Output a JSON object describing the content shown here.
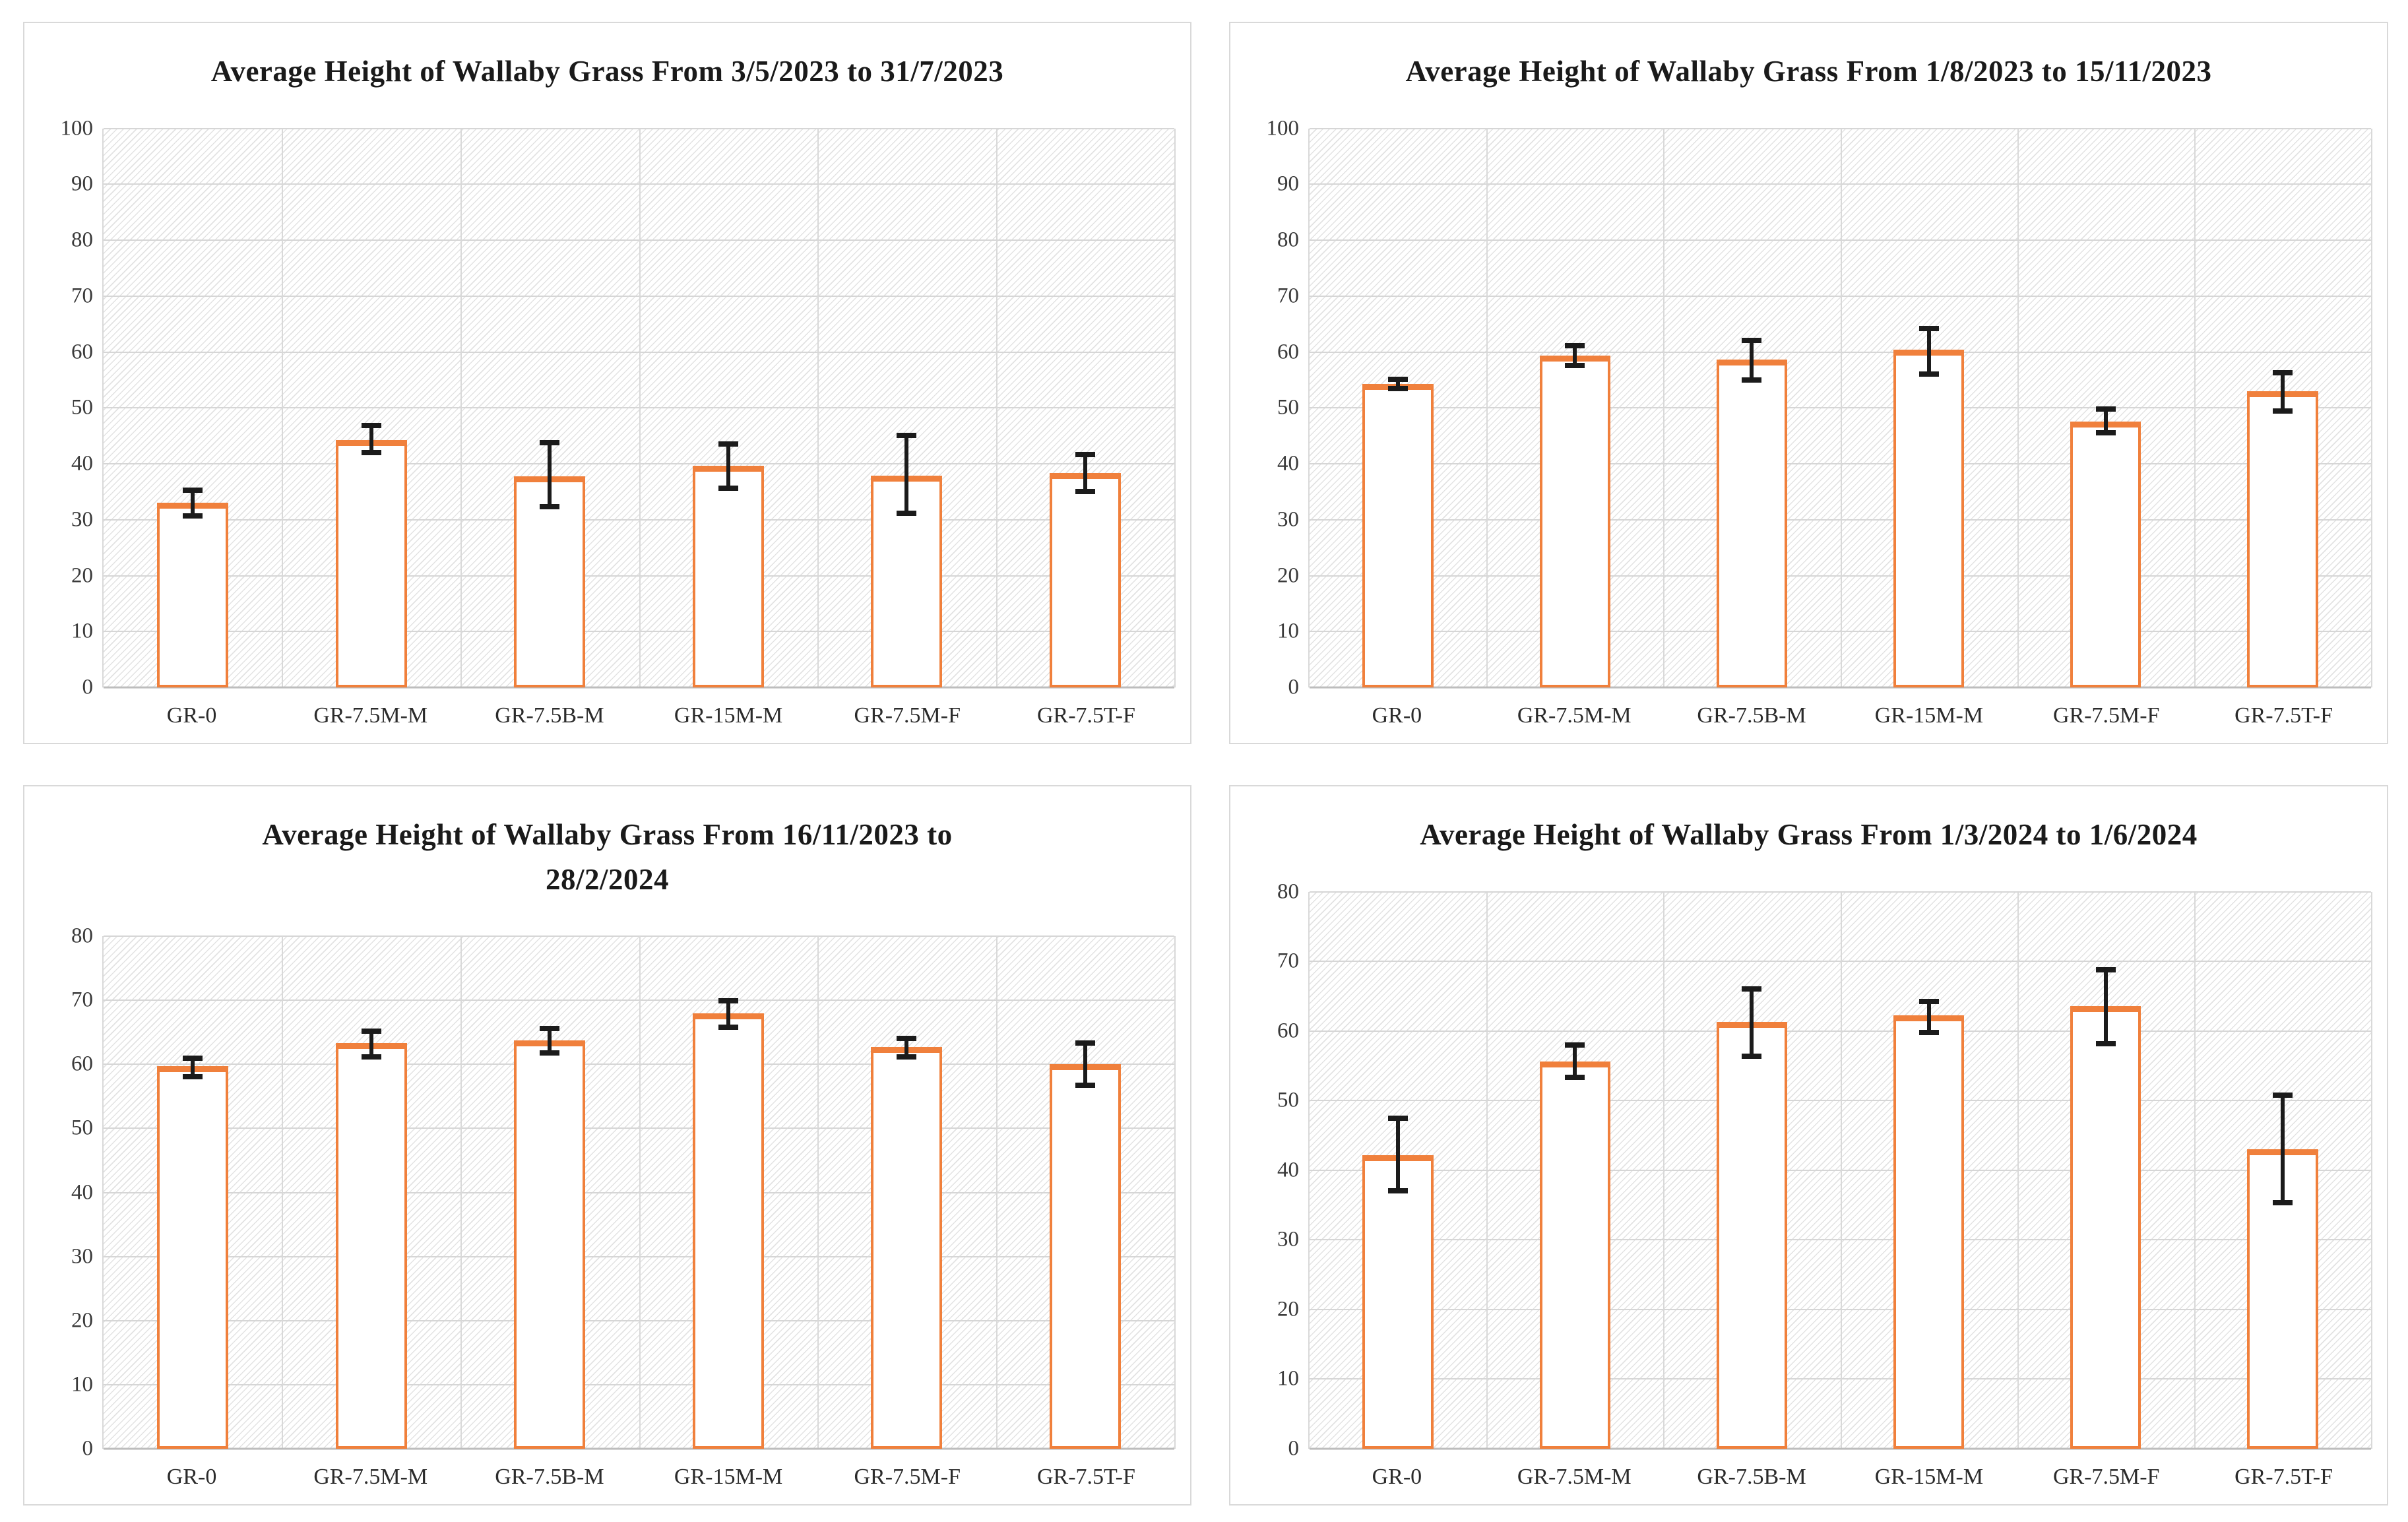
{
  "style": {
    "bar_fill": "#FFFFFF",
    "bar_border": "#F0803C",
    "error_color": "#1B1B1B",
    "gridline_color": "#D6D6D6",
    "axis_color": "#BDBDBD",
    "panel_border": "#D9D9D9",
    "hatch_color": "#E6E6E6",
    "title_color": "#1A1A1A"
  },
  "chart_data": [
    {
      "type": "bar",
      "title": "Average Height of Wallaby Grass From 3/5/2023 to 31/7/2023",
      "title_lines": [
        "Average Height of Wallaby Grass From 3/5/2023 to 31/7/2023"
      ],
      "categories": [
        "GR-0",
        "GR-7.5M-M",
        "GR-7.5B-M",
        "GR-15M-M",
        "GR-7.5M-F",
        "GR-7.5T-F"
      ],
      "values": [
        33.0,
        44.3,
        37.8,
        39.7,
        37.9,
        38.4
      ],
      "error_low": [
        30.7,
        42.0,
        32.3,
        35.6,
        31.2,
        35.1
      ],
      "error_high": [
        35.3,
        46.8,
        43.8,
        43.6,
        45.1,
        41.7
      ],
      "ylim": [
        0,
        100
      ],
      "ytick_step": 10,
      "yticks": [
        0,
        10,
        20,
        30,
        40,
        50,
        60,
        70,
        80,
        90,
        100
      ],
      "xlabel": "",
      "ylabel": "",
      "grid": true,
      "legend": false
    },
    {
      "type": "bar",
      "title": "Average Height of Wallaby Grass From 1/8/2023 to 15/11/2023",
      "title_lines": [
        "Average Height of Wallaby Grass From 1/8/2023 to 15/11/2023"
      ],
      "categories": [
        "GR-0",
        "GR-7.5M-M",
        "GR-7.5B-M",
        "GR-15M-M",
        "GR-7.5M-F",
        "GR-7.5T-F"
      ],
      "values": [
        54.3,
        59.4,
        58.7,
        60.4,
        47.5,
        53.0
      ],
      "error_low": [
        53.4,
        57.6,
        55.0,
        56.1,
        45.6,
        49.4
      ],
      "error_high": [
        55.1,
        61.1,
        62.1,
        64.2,
        49.8,
        56.3
      ],
      "ylim": [
        0,
        100
      ],
      "ytick_step": 10,
      "yticks": [
        0,
        10,
        20,
        30,
        40,
        50,
        60,
        70,
        80,
        90,
        100
      ],
      "xlabel": "",
      "ylabel": "",
      "grid": true,
      "legend": false
    },
    {
      "type": "bar",
      "title": "Average Height of Wallaby Grass From 16/11/2023 to 28/2/2024",
      "title_lines": [
        "Average Height of Wallaby Grass From 16/11/2023 to",
        "28/2/2024"
      ],
      "categories": [
        "GR-0",
        "GR-7.5M-M",
        "GR-7.5B-M",
        "GR-15M-M",
        "GR-7.5M-F",
        "GR-7.5T-F"
      ],
      "values": [
        59.7,
        63.3,
        63.7,
        68.0,
        62.7,
        60.0
      ],
      "error_low": [
        58.1,
        61.2,
        61.8,
        65.8,
        61.2,
        56.7
      ],
      "error_high": [
        61.0,
        65.2,
        65.6,
        69.9,
        64.0,
        63.3
      ],
      "ylim": [
        0,
        80
      ],
      "ytick_step": 10,
      "yticks": [
        0,
        10,
        20,
        30,
        40,
        50,
        60,
        70,
        80
      ],
      "xlabel": "",
      "ylabel": "",
      "grid": true,
      "legend": false
    },
    {
      "type": "bar",
      "title": "Average Height of Wallaby Grass From 1/3/2024 to 1/6/2024",
      "title_lines": [
        "Average Height of Wallaby Grass From 1/3/2024 to 1/6/2024"
      ],
      "categories": [
        "GR-0",
        "GR-7.5M-M",
        "GR-7.5B-M",
        "GR-15M-M",
        "GR-7.5M-F",
        "GR-7.5T-F"
      ],
      "values": [
        42.2,
        55.6,
        61.3,
        62.2,
        63.6,
        43.0
      ],
      "error_low": [
        37.0,
        53.3,
        56.4,
        59.8,
        58.2,
        35.3
      ],
      "error_high": [
        47.5,
        58.0,
        66.0,
        64.2,
        68.8,
        50.8
      ],
      "ylim": [
        0,
        80
      ],
      "ytick_step": 10,
      "yticks": [
        0,
        10,
        20,
        30,
        40,
        50,
        60,
        70,
        80
      ],
      "xlabel": "",
      "ylabel": "",
      "grid": true,
      "legend": false
    }
  ]
}
